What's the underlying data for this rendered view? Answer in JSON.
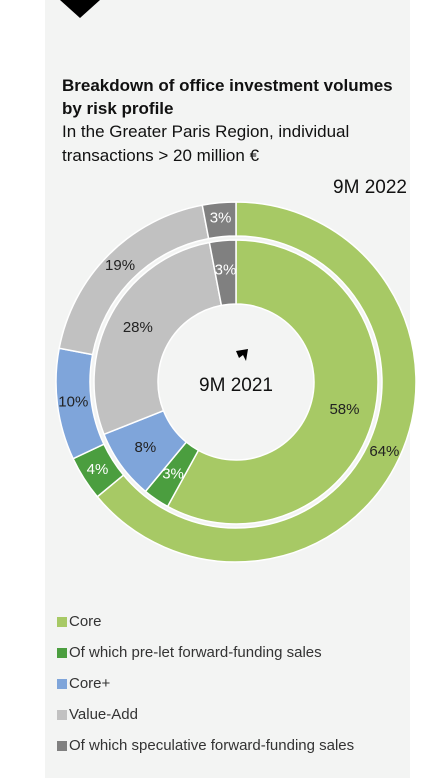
{
  "chart_data": {
    "type": "pie",
    "title": "Breakdown of office investment volumes by risk profile",
    "subtitle": "In the Greater Paris Region, individual transactions > 20 million €",
    "categories": [
      "Core",
      "Of which pre-let forward-funding sales",
      "Core+",
      "Value-Add",
      "Of which speculative forward-funding sales"
    ],
    "colors": [
      "#a7c965",
      "#4b9e3f",
      "#7fa5da",
      "#c1c1c1",
      "#808080"
    ],
    "series": [
      {
        "name": "9M 2022",
        "values": [
          64,
          4,
          10,
          19,
          3
        ],
        "value_labels": [
          "64%",
          "4%",
          "10%",
          "19%",
          "3%"
        ]
      },
      {
        "name": "9M 2021",
        "values": [
          58,
          3,
          8,
          28,
          3
        ],
        "value_labels": [
          "58%",
          "3%",
          "8%",
          "28%",
          "3%"
        ]
      }
    ]
  }
}
